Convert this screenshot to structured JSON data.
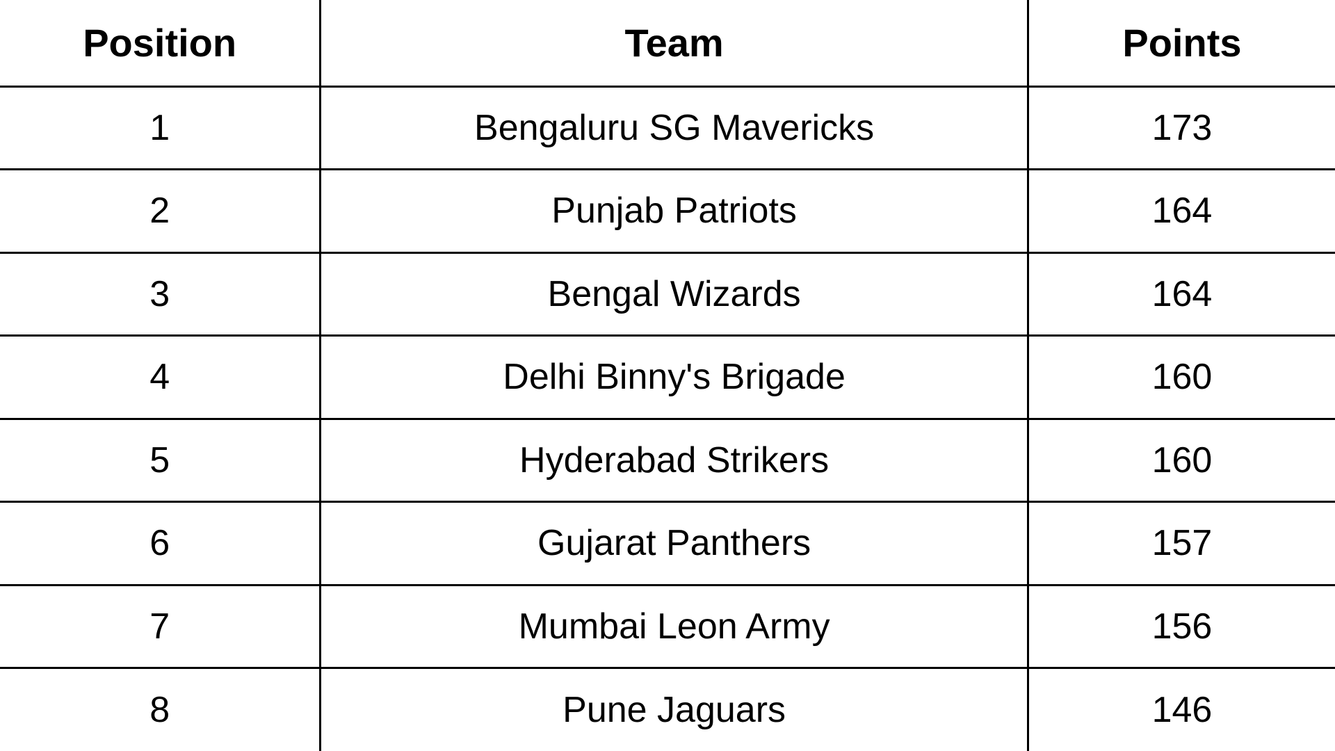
{
  "table": {
    "headers": {
      "position": "Position",
      "team": "Team",
      "points": "Points"
    },
    "rows": [
      {
        "position": "1",
        "team": "Bengaluru SG Mavericks",
        "points": "173"
      },
      {
        "position": "2",
        "team": "Punjab Patriots",
        "points": "164"
      },
      {
        "position": "3",
        "team": "Bengal Wizards",
        "points": "164"
      },
      {
        "position": "4",
        "team": "Delhi Binny's Brigade",
        "points": "160"
      },
      {
        "position": "5",
        "team": "Hyderabad Strikers",
        "points": "160"
      },
      {
        "position": "6",
        "team": "Gujarat Panthers",
        "points": "157"
      },
      {
        "position": "7",
        "team": "Mumbai Leon Army",
        "points": "156"
      },
      {
        "position": "8",
        "team": "Pune Jaguars",
        "points": "146"
      }
    ],
    "styling": {
      "type": "table",
      "header_fontsize": 56,
      "header_fontweight": "bold",
      "cell_fontsize": 52,
      "cell_fontweight": "normal",
      "border_color": "#000000",
      "border_width": 3,
      "background_color": "#ffffff",
      "text_color": "#000000",
      "text_align": "center",
      "column_widths_pct": [
        24,
        53,
        23
      ],
      "header_row_height": 124,
      "data_row_height": 119,
      "outer_border_top": false,
      "outer_border_bottom": false,
      "outer_border_left": false,
      "outer_border_right": false
    }
  }
}
